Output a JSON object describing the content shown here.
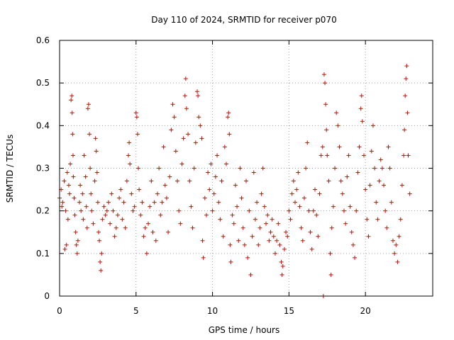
{
  "chart_data": {
    "type": "scatter",
    "title": "Day 110 of 2024, SRMTID for receiver p070",
    "xlabel": "GPS time / hours",
    "ylabel": "SRMTID / TECUs",
    "xlim": [
      0,
      24.4
    ],
    "ylim": [
      0,
      0.6
    ],
    "xticks": [
      0,
      5,
      10,
      15,
      20
    ],
    "xtick_labels": [
      "0",
      "5",
      "10",
      "15",
      "20"
    ],
    "yticks": [
      0,
      0.1,
      0.2,
      0.3,
      0.4,
      0.5,
      0.6
    ],
    "ytick_labels": [
      "0",
      "0.1",
      "0.2",
      "0.3",
      "0.4",
      "0.5",
      "0.6"
    ],
    "grid": true,
    "marker": "+",
    "color": "#e00000",
    "series": [
      {
        "name": "SRMTID",
        "points": [
          [
            0.0,
            0.23
          ],
          [
            0.1,
            0.25
          ],
          [
            0.15,
            0.21
          ],
          [
            0.2,
            0.22
          ],
          [
            0.3,
            0.27
          ],
          [
            0.35,
            0.11
          ],
          [
            0.4,
            0.2
          ],
          [
            0.45,
            0.12
          ],
          [
            0.5,
            0.29
          ],
          [
            0.55,
            0.18
          ],
          [
            0.6,
            0.26
          ],
          [
            0.65,
            0.24
          ],
          [
            0.7,
            0.31
          ],
          [
            0.75,
            0.46
          ],
          [
            0.8,
            0.47
          ],
          [
            0.82,
            0.43
          ],
          [
            0.85,
            0.38
          ],
          [
            0.88,
            0.33
          ],
          [
            0.9,
            0.28
          ],
          [
            0.95,
            0.23
          ],
          [
            1.0,
            0.19
          ],
          [
            1.05,
            0.15
          ],
          [
            1.1,
            0.12
          ],
          [
            1.15,
            0.1
          ],
          [
            1.2,
            0.13
          ],
          [
            1.3,
            0.22
          ],
          [
            1.35,
            0.26
          ],
          [
            1.4,
            0.2
          ],
          [
            1.5,
            0.24
          ],
          [
            1.55,
            0.18
          ],
          [
            1.6,
            0.33
          ],
          [
            1.7,
            0.28
          ],
          [
            1.75,
            0.21
          ],
          [
            1.8,
            0.16
          ],
          [
            1.85,
            0.44
          ],
          [
            1.9,
            0.45
          ],
          [
            1.95,
            0.38
          ],
          [
            2.0,
            0.3
          ],
          [
            2.05,
            0.24
          ],
          [
            2.1,
            0.2
          ],
          [
            2.2,
            0.17
          ],
          [
            2.3,
            0.27
          ],
          [
            2.35,
            0.37
          ],
          [
            2.4,
            0.34
          ],
          [
            2.45,
            0.29
          ],
          [
            2.5,
            0.22
          ],
          [
            2.55,
            0.15
          ],
          [
            2.6,
            0.13
          ],
          [
            2.65,
            0.08
          ],
          [
            2.7,
            0.06
          ],
          [
            2.75,
            0.1
          ],
          [
            2.8,
            0.18
          ],
          [
            2.9,
            0.21
          ],
          [
            3.0,
            0.19
          ],
          [
            3.1,
            0.2
          ],
          [
            3.2,
            0.22
          ],
          [
            3.3,
            0.17
          ],
          [
            3.4,
            0.24
          ],
          [
            3.5,
            0.2
          ],
          [
            3.6,
            0.14
          ],
          [
            3.7,
            0.16
          ],
          [
            3.8,
            0.19
          ],
          [
            3.9,
            0.23
          ],
          [
            4.0,
            0.25
          ],
          [
            4.1,
            0.18
          ],
          [
            4.2,
            0.22
          ],
          [
            4.3,
            0.16
          ],
          [
            4.4,
            0.27
          ],
          [
            4.5,
            0.33
          ],
          [
            4.55,
            0.36
          ],
          [
            4.6,
            0.31
          ],
          [
            4.7,
            0.24
          ],
          [
            4.8,
            0.2
          ],
          [
            4.9,
            0.21
          ],
          [
            5.0,
            0.43
          ],
          [
            5.05,
            0.42
          ],
          [
            5.1,
            0.38
          ],
          [
            5.15,
            0.3
          ],
          [
            5.2,
            0.25
          ],
          [
            5.3,
            0.19
          ],
          [
            5.4,
            0.22
          ],
          [
            5.5,
            0.14
          ],
          [
            5.6,
            0.16
          ],
          [
            5.7,
            0.1
          ],
          [
            5.8,
            0.17
          ],
          [
            5.9,
            0.21
          ],
          [
            6.0,
            0.27
          ],
          [
            6.1,
            0.15
          ],
          [
            6.2,
            0.22
          ],
          [
            6.3,
            0.13
          ],
          [
            6.4,
            0.24
          ],
          [
            6.5,
            0.3
          ],
          [
            6.6,
            0.19
          ],
          [
            6.7,
            0.22
          ],
          [
            6.8,
            0.35
          ],
          [
            6.9,
            0.26
          ],
          [
            7.0,
            0.23
          ],
          [
            7.1,
            0.15
          ],
          [
            7.2,
            0.28
          ],
          [
            7.3,
            0.39
          ],
          [
            7.4,
            0.45
          ],
          [
            7.5,
            0.42
          ],
          [
            7.6,
            0.34
          ],
          [
            7.7,
            0.27
          ],
          [
            7.8,
            0.2
          ],
          [
            7.9,
            0.17
          ],
          [
            8.0,
            0.31
          ],
          [
            8.1,
            0.37
          ],
          [
            8.2,
            0.47
          ],
          [
            8.25,
            0.51
          ],
          [
            8.3,
            0.44
          ],
          [
            8.4,
            0.38
          ],
          [
            8.5,
            0.27
          ],
          [
            8.6,
            0.21
          ],
          [
            8.7,
            0.16
          ],
          [
            8.8,
            0.3
          ],
          [
            8.9,
            0.36
          ],
          [
            9.0,
            0.48
          ],
          [
            9.05,
            0.47
          ],
          [
            9.1,
            0.42
          ],
          [
            9.2,
            0.4
          ],
          [
            9.3,
            0.37
          ],
          [
            9.35,
            0.13
          ],
          [
            9.4,
            0.09
          ],
          [
            9.5,
            0.23
          ],
          [
            9.6,
            0.19
          ],
          [
            9.7,
            0.29
          ],
          [
            9.8,
            0.25
          ],
          [
            9.9,
            0.31
          ],
          [
            10.0,
            0.2
          ],
          [
            10.1,
            0.24
          ],
          [
            10.2,
            0.28
          ],
          [
            10.3,
            0.33
          ],
          [
            10.4,
            0.22
          ],
          [
            10.5,
            0.18
          ],
          [
            10.6,
            0.27
          ],
          [
            10.7,
            0.14
          ],
          [
            10.8,
            0.35
          ],
          [
            10.9,
            0.31
          ],
          [
            11.0,
            0.42
          ],
          [
            11.05,
            0.43
          ],
          [
            11.1,
            0.38
          ],
          [
            11.15,
            0.12
          ],
          [
            11.2,
            0.08
          ],
          [
            11.3,
            0.19
          ],
          [
            11.4,
            0.17
          ],
          [
            11.5,
            0.26
          ],
          [
            11.6,
            0.21
          ],
          [
            11.7,
            0.13
          ],
          [
            11.8,
            0.3
          ],
          [
            11.9,
            0.23
          ],
          [
            12.0,
            0.16
          ],
          [
            12.1,
            0.12
          ],
          [
            12.2,
            0.27
          ],
          [
            12.3,
            0.09
          ],
          [
            12.4,
            0.2
          ],
          [
            12.5,
            0.05
          ],
          [
            12.6,
            0.14
          ],
          [
            12.7,
            0.29
          ],
          [
            12.8,
            0.18
          ],
          [
            12.9,
            0.22
          ],
          [
            13.0,
            0.12
          ],
          [
            13.1,
            0.16
          ],
          [
            13.2,
            0.24
          ],
          [
            13.3,
            0.3
          ],
          [
            13.4,
            0.21
          ],
          [
            13.5,
            0.17
          ],
          [
            13.6,
            0.19
          ],
          [
            13.7,
            0.13
          ],
          [
            13.8,
            0.15
          ],
          [
            13.9,
            0.18
          ],
          [
            14.0,
            0.14
          ],
          [
            14.1,
            0.1
          ],
          [
            14.2,
            0.13
          ],
          [
            14.3,
            0.17
          ],
          [
            14.4,
            0.12
          ],
          [
            14.5,
            0.08
          ],
          [
            14.55,
            0.05
          ],
          [
            14.6,
            0.07
          ],
          [
            14.7,
            0.11
          ],
          [
            14.8,
            0.15
          ],
          [
            14.9,
            0.14
          ],
          [
            15.0,
            0.2
          ],
          [
            15.1,
            0.18
          ],
          [
            15.2,
            0.24
          ],
          [
            15.3,
            0.27
          ],
          [
            15.4,
            0.22
          ],
          [
            15.5,
            0.25
          ],
          [
            15.6,
            0.29
          ],
          [
            15.7,
            0.21
          ],
          [
            15.8,
            0.16
          ],
          [
            15.9,
            0.13
          ],
          [
            16.0,
            0.23
          ],
          [
            16.1,
            0.3
          ],
          [
            16.2,
            0.36
          ],
          [
            16.3,
            0.2
          ],
          [
            16.4,
            0.15
          ],
          [
            16.5,
            0.11
          ],
          [
            16.6,
            0.2
          ],
          [
            16.7,
            0.25
          ],
          [
            16.8,
            0.19
          ],
          [
            16.9,
            0.14
          ],
          [
            17.0,
            0.24
          ],
          [
            17.1,
            0.33
          ],
          [
            17.2,
            0.35
          ],
          [
            17.25,
            0.0
          ],
          [
            17.3,
            0.52
          ],
          [
            17.35,
            0.5
          ],
          [
            17.4,
            0.45
          ],
          [
            17.45,
            0.39
          ],
          [
            17.5,
            0.33
          ],
          [
            17.6,
            0.27
          ],
          [
            17.7,
            0.1
          ],
          [
            17.75,
            0.05
          ],
          [
            17.8,
            0.16
          ],
          [
            17.9,
            0.21
          ],
          [
            18.0,
            0.3
          ],
          [
            18.1,
            0.43
          ],
          [
            18.2,
            0.4
          ],
          [
            18.3,
            0.35
          ],
          [
            18.4,
            0.27
          ],
          [
            18.5,
            0.24
          ],
          [
            18.6,
            0.2
          ],
          [
            18.7,
            0.17
          ],
          [
            18.8,
            0.28
          ],
          [
            18.9,
            0.33
          ],
          [
            19.0,
            0.21
          ],
          [
            19.1,
            0.15
          ],
          [
            19.2,
            0.12
          ],
          [
            19.3,
            0.09
          ],
          [
            19.4,
            0.2
          ],
          [
            19.5,
            0.29
          ],
          [
            19.6,
            0.35
          ],
          [
            19.7,
            0.44
          ],
          [
            19.75,
            0.47
          ],
          [
            19.8,
            0.41
          ],
          [
            19.9,
            0.33
          ],
          [
            20.0,
            0.25
          ],
          [
            20.1,
            0.18
          ],
          [
            20.2,
            0.14
          ],
          [
            20.3,
            0.26
          ],
          [
            20.4,
            0.34
          ],
          [
            20.5,
            0.4
          ],
          [
            20.6,
            0.3
          ],
          [
            20.7,
            0.22
          ],
          [
            20.8,
            0.18
          ],
          [
            20.9,
            0.27
          ],
          [
            21.0,
            0.32
          ],
          [
            21.1,
            0.3
          ],
          [
            21.2,
            0.26
          ],
          [
            21.3,
            0.2
          ],
          [
            21.4,
            0.16
          ],
          [
            21.5,
            0.35
          ],
          [
            21.6,
            0.3
          ],
          [
            21.7,
            0.22
          ],
          [
            21.8,
            0.13
          ],
          [
            21.9,
            0.1
          ],
          [
            22.0,
            0.12
          ],
          [
            22.1,
            0.08
          ],
          [
            22.2,
            0.14
          ],
          [
            22.3,
            0.18
          ],
          [
            22.4,
            0.26
          ],
          [
            22.5,
            0.33
          ],
          [
            22.55,
            0.39
          ],
          [
            22.6,
            0.47
          ],
          [
            22.65,
            0.51
          ],
          [
            22.7,
            0.54
          ],
          [
            22.75,
            0.43
          ],
          [
            22.8,
            0.33
          ],
          [
            22.9,
            0.24
          ]
        ]
      }
    ]
  }
}
